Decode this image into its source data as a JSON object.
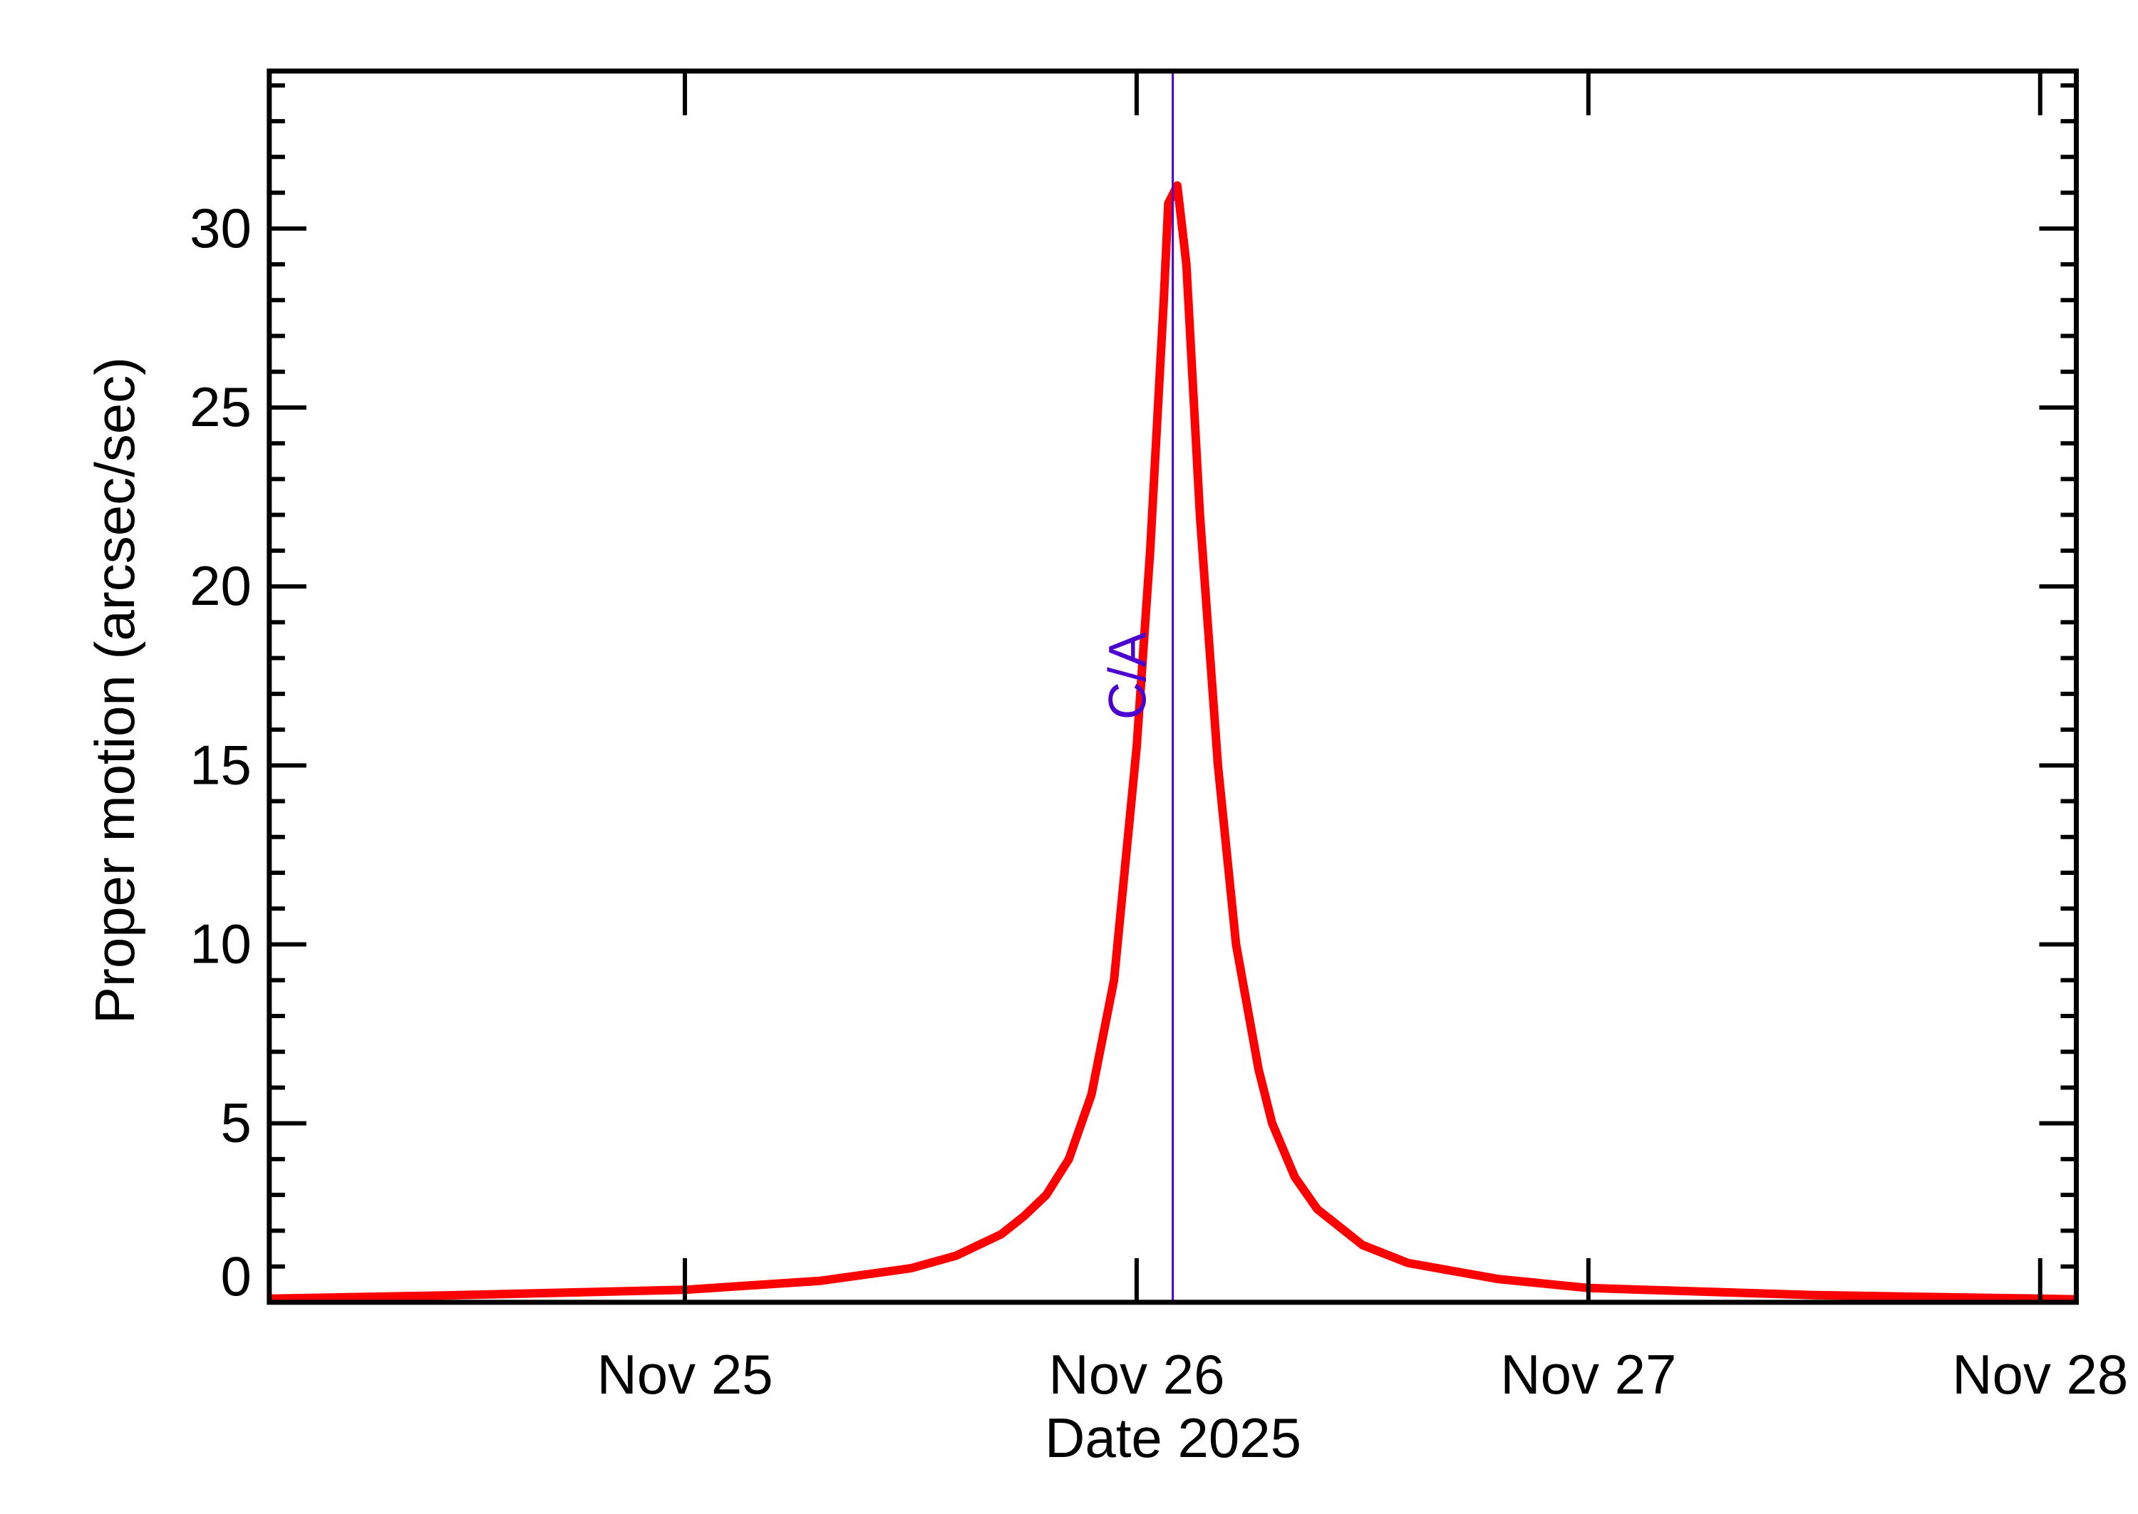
{
  "chart_data": {
    "type": "line",
    "title": "",
    "xlabel": "Date 2025",
    "ylabel": "Proper motion (arcsec/sec)",
    "x_unit": "day of November 2025",
    "xlim": [
      24.08,
      28.08
    ],
    "ylim": [
      0,
      34.4
    ],
    "grid": false,
    "legend": null,
    "x_ticks": [
      {
        "value": 25,
        "label": "Nov 25"
      },
      {
        "value": 26,
        "label": "Nov 26"
      },
      {
        "value": 27,
        "label": "Nov 27"
      },
      {
        "value": 28,
        "label": "Nov 28"
      }
    ],
    "y_ticks": [
      {
        "value": 0,
        "label": "0"
      },
      {
        "value": 5,
        "label": "5"
      },
      {
        "value": 10,
        "label": "10"
      },
      {
        "value": 15,
        "label": "15"
      },
      {
        "value": 20,
        "label": "20"
      },
      {
        "value": 25,
        "label": "25"
      },
      {
        "value": 30,
        "label": "30"
      }
    ],
    "y_minor_step": 1,
    "x_minor_ticks": [],
    "annotations": [
      {
        "type": "vline",
        "x": 26.08,
        "label": "C/A",
        "color": "#4B00D0"
      }
    ],
    "series": [
      {
        "name": "Proper motion",
        "color": "#FF0000",
        "x": [
          24.08,
          24.5,
          25.0,
          25.3,
          25.5,
          25.6,
          25.7,
          25.75,
          25.8,
          25.85,
          25.9,
          25.95,
          26.0,
          26.03,
          26.06,
          26.07,
          26.09,
          26.11,
          26.14,
          26.18,
          26.22,
          26.27,
          26.3,
          26.35,
          26.4,
          26.5,
          26.6,
          26.8,
          27.0,
          27.5,
          28.0,
          28.08
        ],
        "values": [
          0.1,
          0.2,
          0.35,
          0.6,
          0.95,
          1.3,
          1.9,
          2.4,
          3.0,
          4.0,
          5.8,
          9.0,
          15.5,
          21.0,
          28.0,
          30.7,
          31.2,
          29.0,
          22.0,
          15.0,
          10.0,
          6.5,
          5.0,
          3.5,
          2.6,
          1.6,
          1.1,
          0.65,
          0.4,
          0.2,
          0.1,
          0.08
        ]
      }
    ]
  },
  "colors": {
    "curve": "#FF0000",
    "ca_line": "#4B00D0",
    "axis": "#000000",
    "background": "#FFFFFF"
  }
}
